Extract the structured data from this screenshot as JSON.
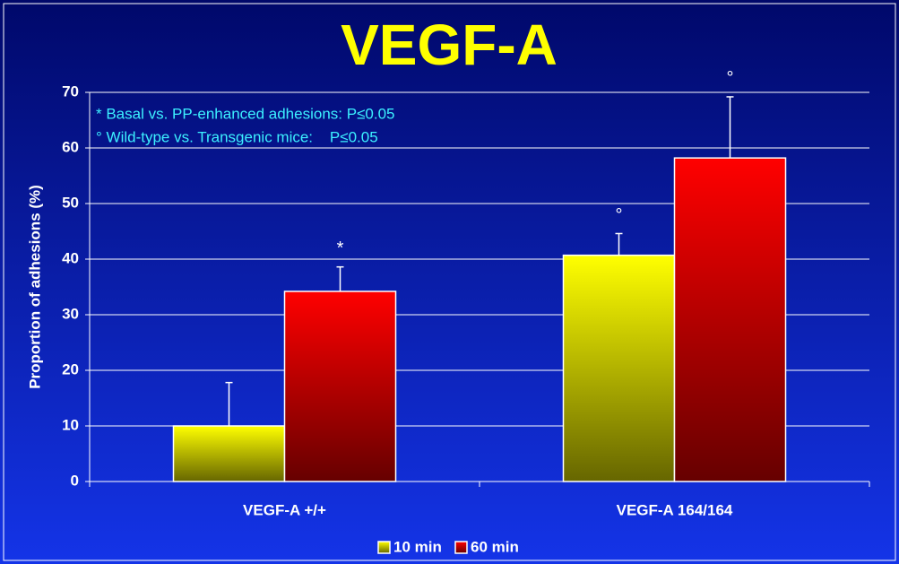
{
  "chart_data": {
    "type": "bar",
    "title": "VEGF-A",
    "y_label": "Proportion of adhesions (%)",
    "notes": [
      "* Basal vs. PP-enhanced adhesions: P≤0.05",
      "° Wild-type vs. Transgenic mice:    P≤0.05"
    ],
    "categories": [
      "VEGF-A +/+",
      "VEGF-A 164/164"
    ],
    "series": [
      {
        "name": "10 min",
        "color": "#ffff00",
        "values": [
          10,
          40.7
        ],
        "errors": [
          7.8,
          3.9
        ],
        "markers": [
          null,
          "°"
        ]
      },
      {
        "name": "60 min",
        "color": "#ff0000",
        "values": [
          34.2,
          58.2
        ],
        "errors": [
          4.4,
          11
        ],
        "markers": [
          "*",
          "°"
        ]
      }
    ],
    "ylim": [
      0,
      70
    ],
    "yticks": [
      0,
      10,
      20,
      30,
      40,
      50,
      60,
      70
    ],
    "grid": true,
    "legend": "bottom"
  }
}
